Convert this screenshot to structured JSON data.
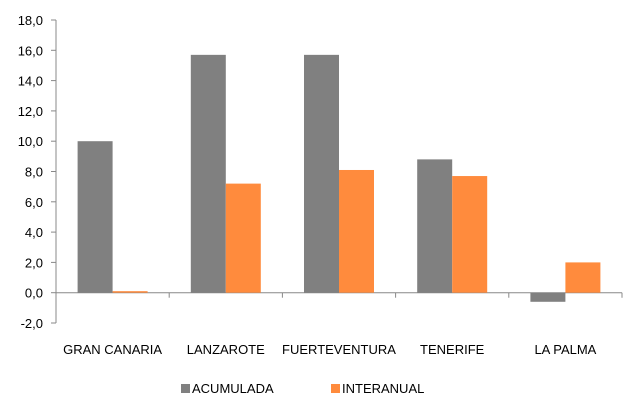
{
  "chart_data": {
    "type": "bar",
    "categories": [
      "GRAN CANARIA",
      "LANZAROTE",
      "FUERTEVENTURA",
      "TENERIFE",
      "LA PALMA"
    ],
    "series": [
      {
        "name": "ACUMULADA",
        "color": "#808080",
        "values": [
          10.0,
          15.7,
          15.7,
          8.8,
          -0.6
        ]
      },
      {
        "name": "INTERANUAL",
        "color": "#FF8B3D",
        "values": [
          0.1,
          7.2,
          8.1,
          7.7,
          2.0
        ]
      }
    ],
    "yticks": [
      "18,0",
      "16,0",
      "14,0",
      "12,0",
      "10,0",
      "8,0",
      "6,0",
      "4,0",
      "2,0",
      "0,0",
      "-2,0"
    ],
    "ylim": [
      -2,
      18
    ],
    "grid": false,
    "legend": "bottom"
  }
}
